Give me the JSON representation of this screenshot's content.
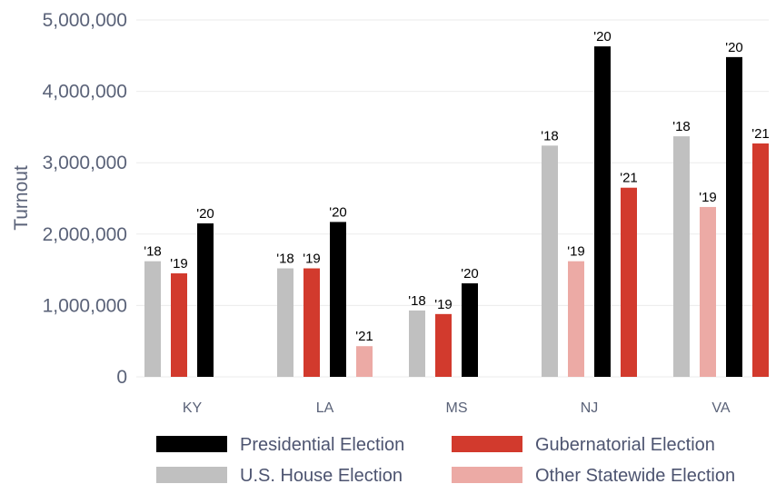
{
  "chart_data": {
    "type": "bar",
    "ylabel": "Turnout",
    "xlabel": "",
    "ylim": [
      0,
      5000000
    ],
    "yticks": [
      0,
      1000000,
      2000000,
      3000000,
      4000000,
      5000000
    ],
    "ytick_labels": [
      "0",
      "1,000,000",
      "2,000,000",
      "3,000,000",
      "4,000,000",
      "5,000,000"
    ],
    "grid": true,
    "legend_position": "bottom",
    "categories": [
      "KY",
      "LA",
      "MS",
      "NJ",
      "VA"
    ],
    "series": [
      {
        "name": "U.S. House Election",
        "color": "#c0c0c0",
        "values": [
          1620000,
          1520000,
          930000,
          3240000,
          3370000
        ],
        "labels": [
          "'18",
          "'18",
          "'18",
          "'18",
          "'18"
        ]
      },
      {
        "name": "Gubernatorial Election",
        "color": "#d23a2d",
        "values": [
          1450000,
          1520000,
          880000,
          2650000,
          3270000
        ],
        "labels": [
          "'19",
          "'19",
          "'19",
          "'21",
          "'21"
        ]
      },
      {
        "name": "Presidential Election",
        "color": "#000000",
        "values": [
          2150000,
          2170000,
          1310000,
          4630000,
          4480000
        ],
        "labels": [
          "'20",
          "'20",
          "'20",
          "'20",
          "'20"
        ]
      },
      {
        "name": "Other Statewide Election",
        "color": "#ecaaa5",
        "values": [
          null,
          430000,
          null,
          1620000,
          2380000
        ],
        "labels": [
          null,
          "'21",
          null,
          "'19",
          "'19"
        ]
      }
    ],
    "bar_order": [
      [
        "U.S. House Election",
        "Gubernatorial Election",
        "Presidential Election"
      ],
      [
        "U.S. House Election",
        "Gubernatorial Election",
        "Presidential Election",
        "Other Statewide Election"
      ],
      [
        "U.S. House Election",
        "Gubernatorial Election",
        "Presidential Election"
      ],
      [
        "U.S. House Election",
        "Other Statewide Election",
        "Presidential Election",
        "Gubernatorial Election"
      ],
      [
        "U.S. House Election",
        "Other Statewide Election",
        "Presidential Election",
        "Gubernatorial Election"
      ]
    ],
    "legend_order": [
      "Presidential Election",
      "Gubernatorial Election",
      "U.S. House Election",
      "Other Statewide Election"
    ]
  }
}
